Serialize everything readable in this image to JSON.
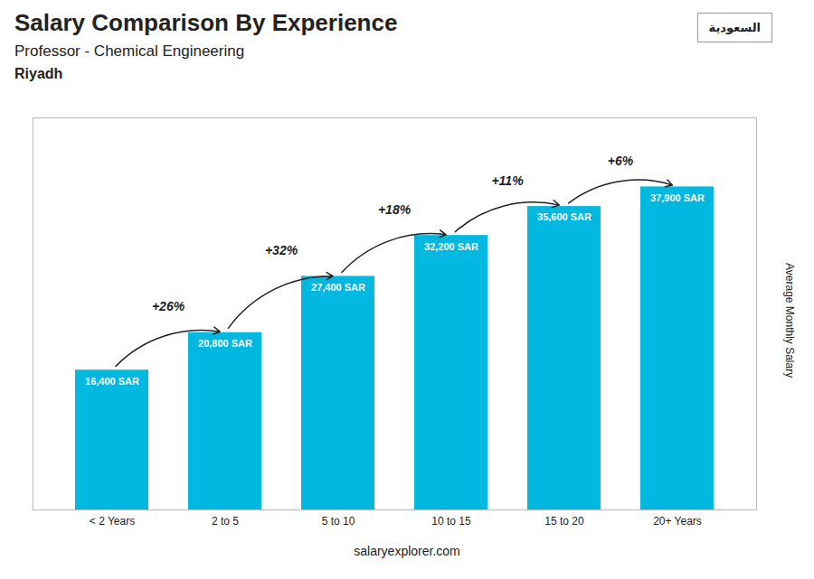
{
  "chart_data": {
    "type": "bar",
    "title": "Salary Comparison By Experience",
    "subtitle": "Professor - Chemical Engineering",
    "ylabel": "Average Monthly Salary",
    "categories": [
      "< 2 Years",
      "2 to 5",
      "5 to 10",
      "10 to 15",
      "15 to 20",
      "20+ Years"
    ],
    "values": [
      16400,
      20800,
      27400,
      32200,
      35600,
      37900
    ],
    "value_labels": [
      "16,400 SAR",
      "20,800 SAR",
      "27,400 SAR",
      "32,200 SAR",
      "35,600 SAR",
      "37,900 SAR"
    ],
    "data_labels": true,
    "pct_changes": [
      null,
      "+26%",
      "+32%",
      "+18%",
      "+11%",
      "+6%"
    ],
    "annotations": [
      "Riyadh",
      "salaryexplorer.com",
      "السعودية"
    ],
    "color": "#00b8e0",
    "ylim": [
      0,
      46000
    ],
    "tick_labels": "x",
    "grid": false
  }
}
